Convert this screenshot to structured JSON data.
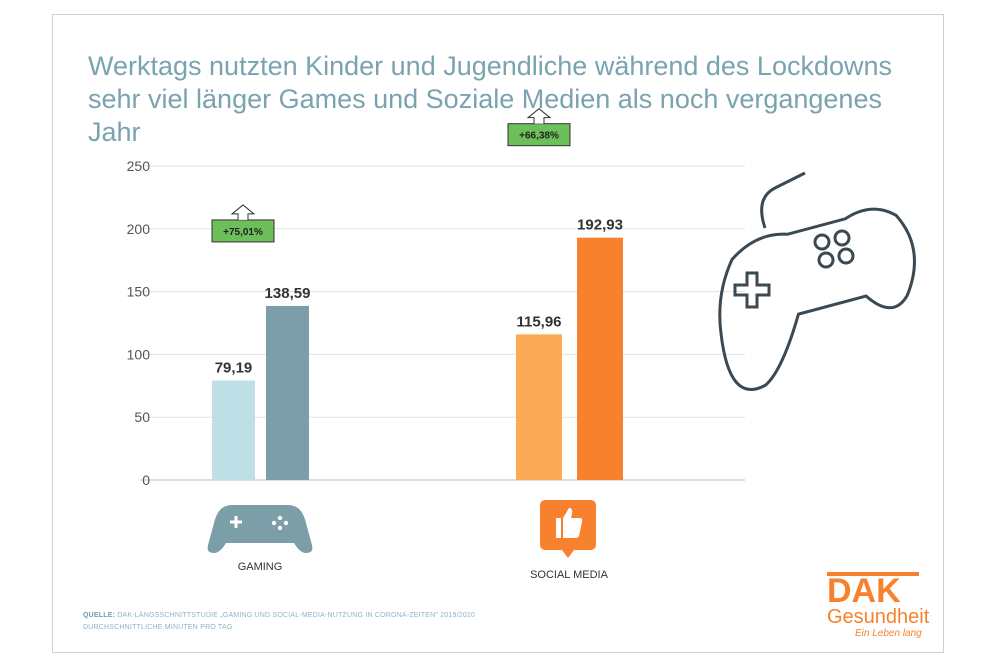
{
  "title_lines": [
    "Werktags nutzten Kinder und Jugendliche während des Lockdowns",
    "sehr viel länger Games und Soziale Medien als noch vergangenes Jahr"
  ],
  "chart_data": {
    "type": "bar",
    "categories": [
      "GAMING",
      "SOCIAL MEDIA"
    ],
    "series": [
      {
        "values": [
          79.19,
          115.96
        ]
      },
      {
        "values": [
          138.59,
          192.93
        ]
      }
    ],
    "data_labels": [
      [
        "79,19",
        "138,59"
      ],
      [
        "115,96",
        "192,93"
      ]
    ],
    "change_labels": [
      "+75,01%",
      "+66,38%"
    ],
    "yticks": [
      0,
      50,
      100,
      150,
      200,
      250
    ],
    "ylim": [
      0,
      250
    ],
    "grid": true,
    "colors": {
      "gaming": [
        "#bfdfe7",
        "#7b9ea9"
      ],
      "social": [
        "#fbaa55",
        "#f7812c"
      ],
      "badge": "#6cbf5a"
    }
  },
  "icons": {
    "gaming": "gamepad-icon",
    "social": "thumbs-up-icon",
    "decoration": "controller-outline-icon"
  },
  "source": {
    "label": "QUELLE:",
    "text": " DAK-LÄNGSSCHNITTSTUDIE „GAMING UND SOCIAL-MEDIA-NUTZUNG IN CORONA-ZEITEN\" 2019/2020",
    "line2": "DURCHSCHNITTLICHE MINUTEN PRO TAG"
  },
  "logo": {
    "brand": "DAK",
    "name": "Gesundheit",
    "slogan": "Ein Leben lang"
  }
}
